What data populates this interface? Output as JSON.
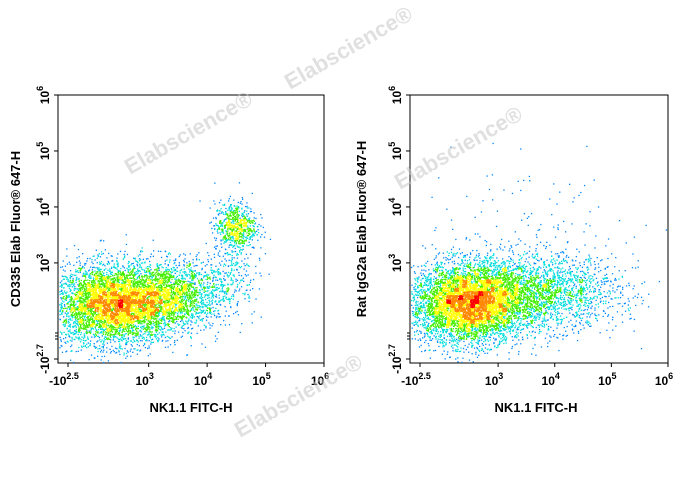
{
  "watermark": "Elabscience®",
  "chart_data": [
    {
      "type": "scatter",
      "title": "",
      "xlabel": "NK1.1 FITC-H",
      "ylabel": "CD335 Elab Fluor® 647-H",
      "x_scale": "biexponential",
      "y_scale": "biexponential",
      "xlim": [
        -316,
        1000000
      ],
      "ylim": [
        -500,
        1000000
      ],
      "x_ticks": [
        {
          "base": "-10",
          "exp": "2.5",
          "value": -316
        },
        {
          "base": "10",
          "exp": "3",
          "value": 1000
        },
        {
          "base": "10",
          "exp": "4",
          "value": 10000
        },
        {
          "base": "10",
          "exp": "5",
          "value": 100000
        },
        {
          "base": "10",
          "exp": "6",
          "value": 1000000
        }
      ],
      "y_ticks": [
        {
          "base": "-10",
          "exp": "2.7",
          "value": -500
        },
        {
          "base": "10",
          "exp": "3",
          "value": 1000
        },
        {
          "base": "10",
          "exp": "4",
          "value": 10000
        },
        {
          "base": "10",
          "exp": "5",
          "value": 100000
        },
        {
          "base": "10",
          "exp": "6",
          "value": 1000000
        }
      ],
      "populations": [
        {
          "center": [
            250,
            150
          ],
          "spread": [
            0.55,
            0.35
          ],
          "count": 5200
        },
        {
          "center": [
            2500,
            280
          ],
          "spread": [
            0.5,
            0.3
          ],
          "count": 1800
        },
        {
          "center": [
            30000,
            4500
          ],
          "spread": [
            0.18,
            0.22
          ],
          "count": 700
        },
        {
          "center": [
            25000,
            700
          ],
          "spread": [
            0.2,
            0.25
          ],
          "count": 150
        }
      ],
      "color_scale": [
        "#0000cc",
        "#0088ff",
        "#00dddd",
        "#44ee00",
        "#ffff00",
        "#ff8800",
        "#ff0000"
      ],
      "grid": false,
      "legend": "none"
    },
    {
      "type": "scatter",
      "title": "",
      "xlabel": "NK1.1 FITC-H",
      "ylabel": "Rat IgG2a Elab Fluor® 647-H",
      "x_scale": "biexponential",
      "y_scale": "biexponential",
      "xlim": [
        -316,
        1000000
      ],
      "ylim": [
        -500,
        1000000
      ],
      "x_ticks": [
        {
          "base": "-10",
          "exp": "2.5",
          "value": -316
        },
        {
          "base": "10",
          "exp": "3",
          "value": 1000
        },
        {
          "base": "10",
          "exp": "4",
          "value": 10000
        },
        {
          "base": "10",
          "exp": "5",
          "value": 100000
        },
        {
          "base": "10",
          "exp": "6",
          "value": 1000000
        }
      ],
      "y_ticks": [
        {
          "base": "-10",
          "exp": "2.7",
          "value": -500
        },
        {
          "base": "10",
          "exp": "3",
          "value": 1000
        },
        {
          "base": "10",
          "exp": "4",
          "value": 10000
        },
        {
          "base": "10",
          "exp": "5",
          "value": 100000
        },
        {
          "base": "10",
          "exp": "6",
          "value": 1000000
        }
      ],
      "populations": [
        {
          "center": [
            280,
            160
          ],
          "spread": [
            0.5,
            0.35
          ],
          "count": 5200
        },
        {
          "center": [
            4000,
            300
          ],
          "spread": [
            0.75,
            0.33
          ],
          "count": 2600
        },
        {
          "center": [
            3000,
            4000
          ],
          "spread": [
            1.2,
            0.6
          ],
          "count": 120
        }
      ],
      "color_scale": [
        "#0000cc",
        "#0088ff",
        "#00dddd",
        "#44ee00",
        "#ffff00",
        "#ff8800",
        "#ff0000"
      ],
      "grid": false,
      "legend": "none"
    }
  ]
}
